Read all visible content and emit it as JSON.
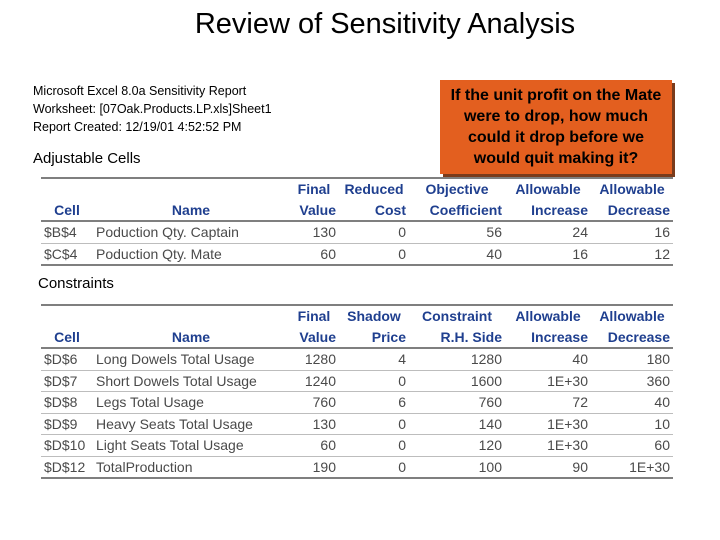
{
  "title": "Review of Sensitivity Analysis",
  "report": {
    "line1": "Microsoft Excel 8.0a Sensitivity Report",
    "line2": "Worksheet: [07Oak.Products.LP.xls]Sheet1",
    "line3": "Report Created: 12/19/01 4:52:52 PM"
  },
  "callout": "If the unit profit on the Mate were to drop, how much could it drop before we would quit making it?",
  "adjustable": {
    "label": "Adjustable Cells",
    "header1": [
      "",
      "",
      "Final",
      "Reduced",
      "Objective",
      "Allowable",
      "Allowable"
    ],
    "header2": [
      "Cell",
      "Name",
      "Value",
      "Cost",
      "Coefficient",
      "Increase",
      "Decrease"
    ],
    "rows": [
      [
        "$B$4",
        "Poduction Qty. Captain",
        "130",
        "0",
        "56",
        "24",
        "16"
      ],
      [
        "$C$4",
        "Poduction Qty. Mate",
        "60",
        "0",
        "40",
        "16",
        "12"
      ]
    ]
  },
  "constraints": {
    "label": "Constraints",
    "header1": [
      "",
      "",
      "Final",
      "Shadow",
      "Constraint",
      "Allowable",
      "Allowable"
    ],
    "header2": [
      "Cell",
      "Name",
      "Value",
      "Price",
      "R.H. Side",
      "Increase",
      "Decrease"
    ],
    "rows": [
      [
        "$D$6",
        "Long Dowels Total Usage",
        "1280",
        "4",
        "1280",
        "40",
        "180"
      ],
      [
        "$D$7",
        "Short Dowels Total Usage",
        "1240",
        "0",
        "1600",
        "1E+30",
        "360"
      ],
      [
        "$D$8",
        "Legs Total Usage",
        "760",
        "6",
        "760",
        "72",
        "40"
      ],
      [
        "$D$9",
        "Heavy Seats Total Usage",
        "130",
        "0",
        "140",
        "1E+30",
        "10"
      ],
      [
        "$D$10",
        "Light Seats Total Usage",
        "60",
        "0",
        "120",
        "1E+30",
        "60"
      ],
      [
        "$D$12",
        "TotalProduction",
        "190",
        "0",
        "100",
        "90",
        "1E+30"
      ]
    ]
  }
}
